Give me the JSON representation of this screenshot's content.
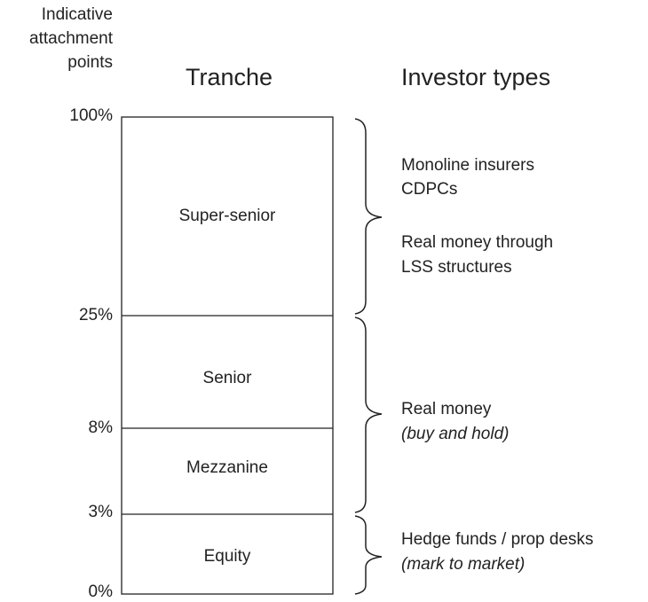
{
  "axis_title": [
    "Indicative",
    "attachment",
    "points"
  ],
  "headings": {
    "tranche": "Tranche",
    "investors": "Investor types"
  },
  "attachment_points": [
    "100%",
    "25%",
    "8%",
    "3%",
    "0%"
  ],
  "tranches": [
    "Super-senior",
    "Senior",
    "Mezzanine",
    "Equity"
  ],
  "investor_groups": [
    {
      "lines": [
        "Monoline insurers",
        "CDPCs",
        "Real money through",
        "LSS structures"
      ]
    },
    {
      "lines": [
        "Real money",
        "(buy and hold)"
      ]
    },
    {
      "lines": [
        "Hedge funds / prop desks",
        "(mark to market)"
      ]
    }
  ]
}
